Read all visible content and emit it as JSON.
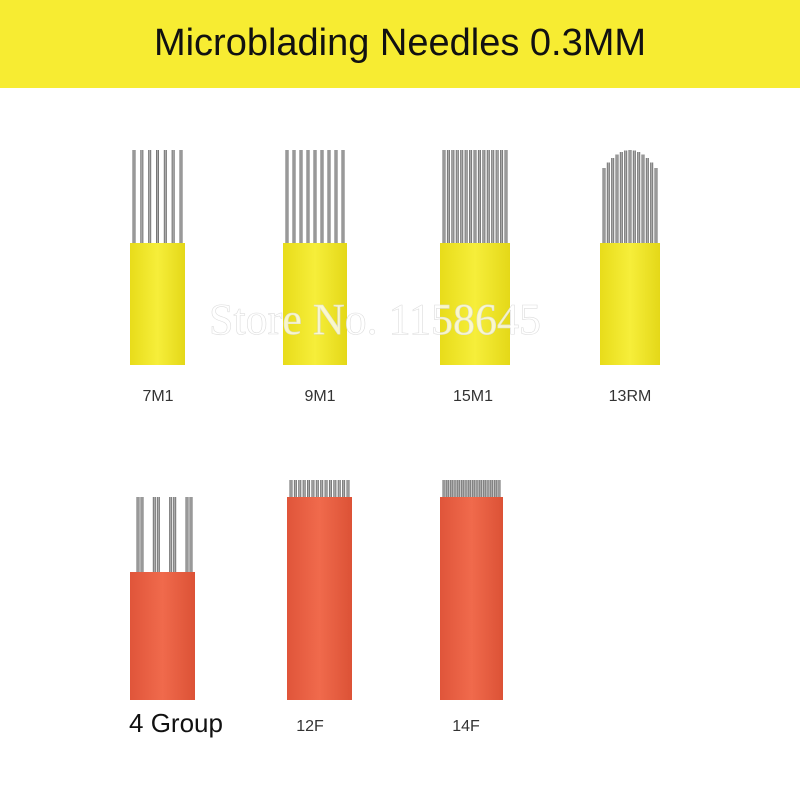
{
  "header": {
    "title": "Microblading Needles 0.3MM"
  },
  "watermark": "Store No. 1158645",
  "needles": [
    {
      "label": "7M1"
    },
    {
      "label": "9M1"
    },
    {
      "label": "15M1"
    },
    {
      "label": "13RM"
    },
    {
      "label": "4 Group"
    },
    {
      "label": "12F"
    },
    {
      "label": "14F"
    }
  ]
}
